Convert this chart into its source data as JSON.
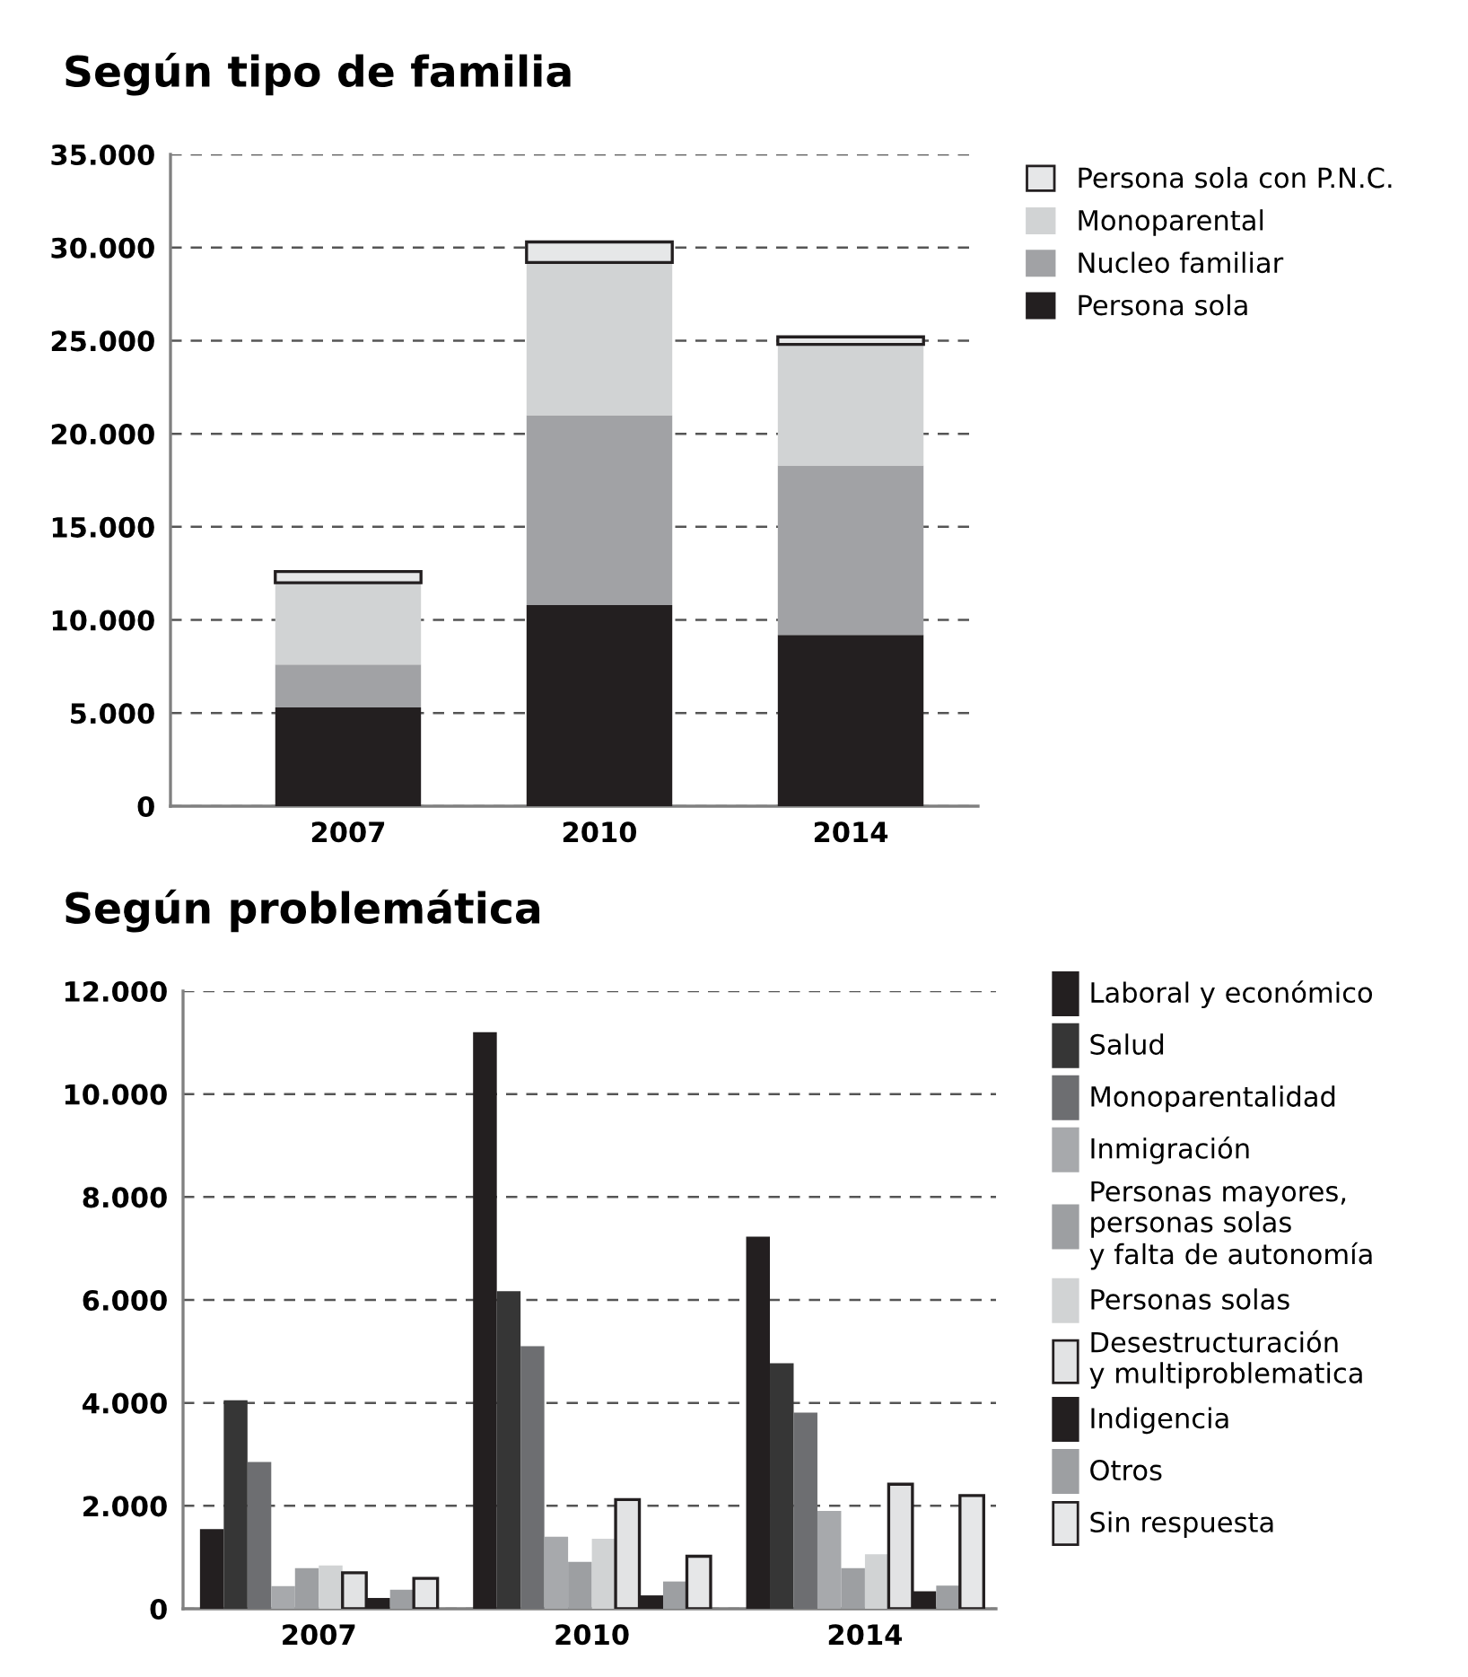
{
  "chart_data": [
    {
      "type": "bar",
      "title": "Según tipo de familia",
      "stacked": true,
      "categories": [
        "2007",
        "2010",
        "2014"
      ],
      "ylim": [
        0,
        35000
      ],
      "yticks": [
        {
          "value": 0,
          "label": "0"
        },
        {
          "value": 5000,
          "label": "5.000"
        },
        {
          "value": 10000,
          "label": "10.000"
        },
        {
          "value": 15000,
          "label": "15.000"
        },
        {
          "value": 20000,
          "label": "20.000"
        },
        {
          "value": 25000,
          "label": "25.000"
        },
        {
          "value": 30000,
          "label": "30.000"
        },
        {
          "value": 35000,
          "label": "35.000"
        }
      ],
      "grid": "y",
      "legend": "top right",
      "series": [
        {
          "name": "Persona sola",
          "color": "#231f20",
          "values": [
            5300,
            10800,
            9200
          ]
        },
        {
          "name": "Nucleo familiar",
          "color": "#a1a2a5",
          "values": [
            2300,
            10200,
            9100
          ]
        },
        {
          "name": "Monoparental",
          "color": "#d1d3d4",
          "values": [
            4400,
            8200,
            6500
          ]
        },
        {
          "name": "Persona sola con P.N.C.",
          "color": "#e6e7e8",
          "values": [
            600,
            1100,
            400
          ]
        }
      ]
    },
    {
      "type": "bar",
      "title": "Según problemática",
      "categories": [
        "2007",
        "2010",
        "2014"
      ],
      "ylim": [
        0,
        12000
      ],
      "yticks": [
        {
          "value": 0,
          "label": "0"
        },
        {
          "value": 2000,
          "label": "2.000"
        },
        {
          "value": 4000,
          "label": "4.000"
        },
        {
          "value": 6000,
          "label": "6.000"
        },
        {
          "value": 8000,
          "label": "8.000"
        },
        {
          "value": 10000,
          "label": "10.000"
        },
        {
          "value": 12000,
          "label": "12.000"
        }
      ],
      "grid": "y",
      "legend": "right",
      "series": [
        {
          "name": "Laboral y económico",
          "color": "#231f20",
          "values": [
            1550,
            11200,
            7230
          ]
        },
        {
          "name": "Salud",
          "color": "#363636",
          "values": [
            4050,
            6170,
            4770
          ]
        },
        {
          "name": "Monoparentalidad",
          "color": "#6d6e71",
          "values": [
            2850,
            5100,
            3810
          ]
        },
        {
          "name": "Inmigración",
          "color": "#a7a9ac",
          "values": [
            440,
            1400,
            1900
          ]
        },
        {
          "name": "Personas mayores,\npersonas solas\ny falta de autonomía",
          "color": "#9d9fa2",
          "values": [
            790,
            910,
            790
          ]
        },
        {
          "name": "Personas solas",
          "color": "#d1d3d4",
          "values": [
            840,
            1360,
            1060
          ]
        },
        {
          "name": "Desestructuración\ny multiproblematica",
          "color": "#e2e3e4",
          "values": [
            700,
            2120,
            2420
          ]
        },
        {
          "name": "Indigencia",
          "color": "#231f20",
          "values": [
            210,
            260,
            340
          ]
        },
        {
          "name": "Otros",
          "color": "#9d9fa2",
          "values": [
            370,
            530,
            450
          ]
        },
        {
          "name": "Sin respuesta",
          "color": "#e6e7e8",
          "values": [
            590,
            1020,
            2200
          ]
        }
      ]
    }
  ]
}
